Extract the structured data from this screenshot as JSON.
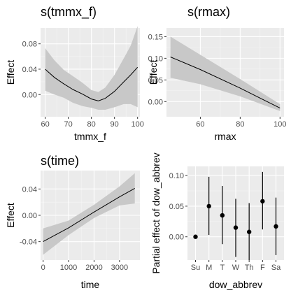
{
  "chart_data": [
    {
      "type": "line",
      "title": "s(tmmx_f)",
      "xlabel": "tmmx_f",
      "ylabel": "Effect",
      "xlim": [
        58,
        101
      ],
      "ylim": [
        -0.035,
        0.105
      ],
      "xticks": [
        60,
        70,
        80,
        90,
        100
      ],
      "xtick_labels": [
        "60",
        "70",
        "80",
        "90",
        "100"
      ],
      "yticks": [
        0.0,
        0.04,
        0.08
      ],
      "ytick_labels": [
        "0.00",
        "0.04",
        "0.08"
      ],
      "grid": true,
      "x": [
        60,
        64,
        68,
        72,
        76,
        80,
        83,
        86,
        90,
        94,
        97,
        100
      ],
      "y": [
        0.04,
        0.027,
        0.017,
        0.008,
        0.001,
        -0.007,
        -0.01,
        -0.006,
        0.005,
        0.02,
        0.031,
        0.043
      ],
      "lower": [
        0.006,
        0.0,
        -0.005,
        -0.013,
        -0.018,
        -0.021,
        -0.024,
        -0.024,
        -0.02,
        -0.015,
        -0.015,
        -0.02
      ],
      "upper": [
        0.073,
        0.054,
        0.039,
        0.029,
        0.019,
        0.007,
        0.004,
        0.011,
        0.031,
        0.057,
        0.077,
        0.108
      ]
    },
    {
      "type": "line",
      "title": "s(rmax)",
      "xlabel": "rmax",
      "ylabel": "Effect",
      "xlim": [
        43,
        102
      ],
      "ylim": [
        -0.035,
        0.17
      ],
      "xticks": [
        60,
        80,
        100
      ],
      "xtick_labels": [
        "60",
        "80",
        "100"
      ],
      "yticks": [
        0.0,
        0.05,
        0.1,
        0.15
      ],
      "ytick_labels": [
        "0.00",
        "0.05",
        "0.10",
        "0.15"
      ],
      "grid": true,
      "x": [
        45,
        60,
        80,
        100
      ],
      "y": [
        0.103,
        0.074,
        0.031,
        -0.015
      ],
      "lower": [
        0.055,
        0.04,
        0.012,
        -0.022
      ],
      "upper": [
        0.15,
        0.108,
        0.052,
        -0.006
      ]
    },
    {
      "type": "line",
      "title": "s(time)",
      "xlabel": "time",
      "ylabel": "Effect",
      "xlim": [
        -100,
        3800
      ],
      "ylim": [
        -0.068,
        0.068
      ],
      "xticks": [
        0,
        1000,
        2000,
        3000
      ],
      "xtick_labels": [
        "0",
        "1000",
        "2000",
        "3000"
      ],
      "yticks": [
        -0.04,
        0.0,
        0.04
      ],
      "ytick_labels": [
        "-0.04",
        "0.00",
        "0.04"
      ],
      "grid": true,
      "x": [
        0,
        1000,
        2000,
        3000,
        3600
      ],
      "y": [
        -0.04,
        -0.019,
        0.005,
        0.028,
        0.041
      ],
      "lower": [
        -0.06,
        -0.03,
        -0.004,
        0.015,
        0.018
      ],
      "upper": [
        -0.02,
        -0.008,
        0.016,
        0.044,
        0.064
      ]
    },
    {
      "type": "scatter",
      "xlabel": "dow_abbrev",
      "ylabel": "Partial effect of dow_abbrev",
      "categories": [
        "Su",
        "M",
        "T",
        "W",
        "Th",
        "F",
        "Sa"
      ],
      "values": [
        0.0,
        0.05,
        0.035,
        0.015,
        0.008,
        0.058,
        0.017
      ],
      "lower": [
        0.0,
        0.003,
        -0.012,
        -0.033,
        -0.038,
        0.012,
        -0.03
      ],
      "upper": [
        0.0,
        0.098,
        0.083,
        0.062,
        0.055,
        0.106,
        0.064
      ],
      "ylim": [
        -0.038,
        0.115
      ],
      "yticks": [
        0.0,
        0.05,
        0.1
      ],
      "ytick_labels": [
        "0.00",
        "0.05",
        "0.10"
      ],
      "grid": true
    }
  ],
  "colors": {
    "panel_background": "#ebebeb",
    "grid_major": "#ffffff",
    "grid_minor": "#f5f5f5",
    "ribbon": "#c8c8c8",
    "line": "#000000"
  }
}
